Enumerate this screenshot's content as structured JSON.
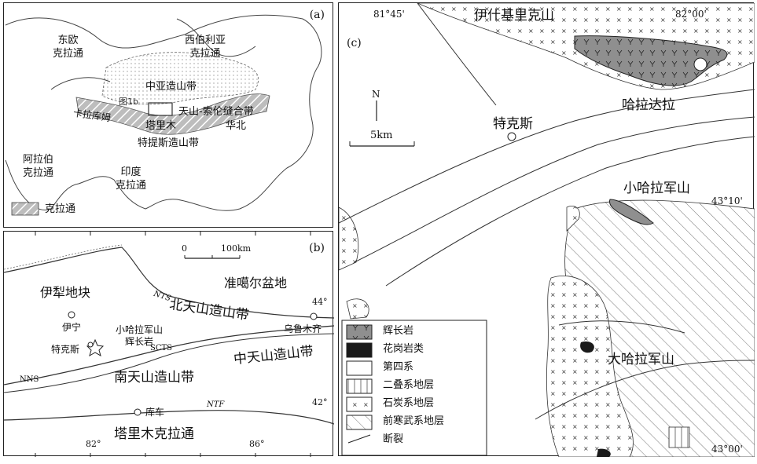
{
  "panel_a": {
    "label": "(a)",
    "regions": {
      "east_europe": "东欧\n克拉通",
      "siberia": "西伯利亚\n克拉通",
      "central_asia": "中亚造山带",
      "karakum": "卡拉库姆",
      "fig1b": "图1b",
      "tianshan_suture": "天山-索伦缝合带",
      "tarim": "塔里木",
      "north_china": "华北",
      "tethys": "特提斯造山带",
      "arabia": "阿拉伯\n克拉通",
      "india": "印度\n克拉通"
    },
    "legend_label": "克拉通"
  },
  "panel_b": {
    "label": "(b)",
    "scale": {
      "zero": "0",
      "dist": "100km"
    },
    "regions": {
      "yili": "伊犁地块",
      "junggar": "准噶尔盆地",
      "north_tianshan": "北天山造山带",
      "central_tianshan": "中天山造山带",
      "south_tianshan": "南天山造山带",
      "tarim_craton": "塔里木克拉通"
    },
    "places": {
      "yining": "伊宁",
      "tekes": "特克斯",
      "xiaohala": "小哈拉军山\n辉长岩",
      "urumqi": "乌鲁木齐",
      "kuqa": "库车"
    },
    "faults": {
      "nts": "NTS",
      "scts": "SCTS",
      "nns": "NNS",
      "ntf": "NTF"
    },
    "ticks": {
      "lat44": "44°",
      "lat42": "42°",
      "lon82": "82°",
      "lon86": "86°"
    }
  },
  "panel_c": {
    "label": "(c)",
    "coords": {
      "lon1": "81°45'",
      "lon2": "82°00'",
      "lat1": "43°10'",
      "lat2": "43°00'"
    },
    "places": {
      "yishenjili": "伊什基里克山",
      "halada": "哈拉达拉",
      "tekes": "特克斯",
      "xiaohala": "小哈拉军山",
      "dahala": "大哈拉军山"
    },
    "north": "N",
    "scale": "5km",
    "legend": [
      {
        "label": "辉长岩"
      },
      {
        "label": "花岗岩类"
      },
      {
        "label": "第四系"
      },
      {
        "label": "二叠系地层"
      },
      {
        "label": "石炭系地层"
      },
      {
        "label": "前寒武系地层"
      },
      {
        "label": "断裂"
      }
    ]
  },
  "colors": {
    "gabbro": "#8f8f8f",
    "granite": "#1a1a1a",
    "craton": "#a9a9a9"
  }
}
